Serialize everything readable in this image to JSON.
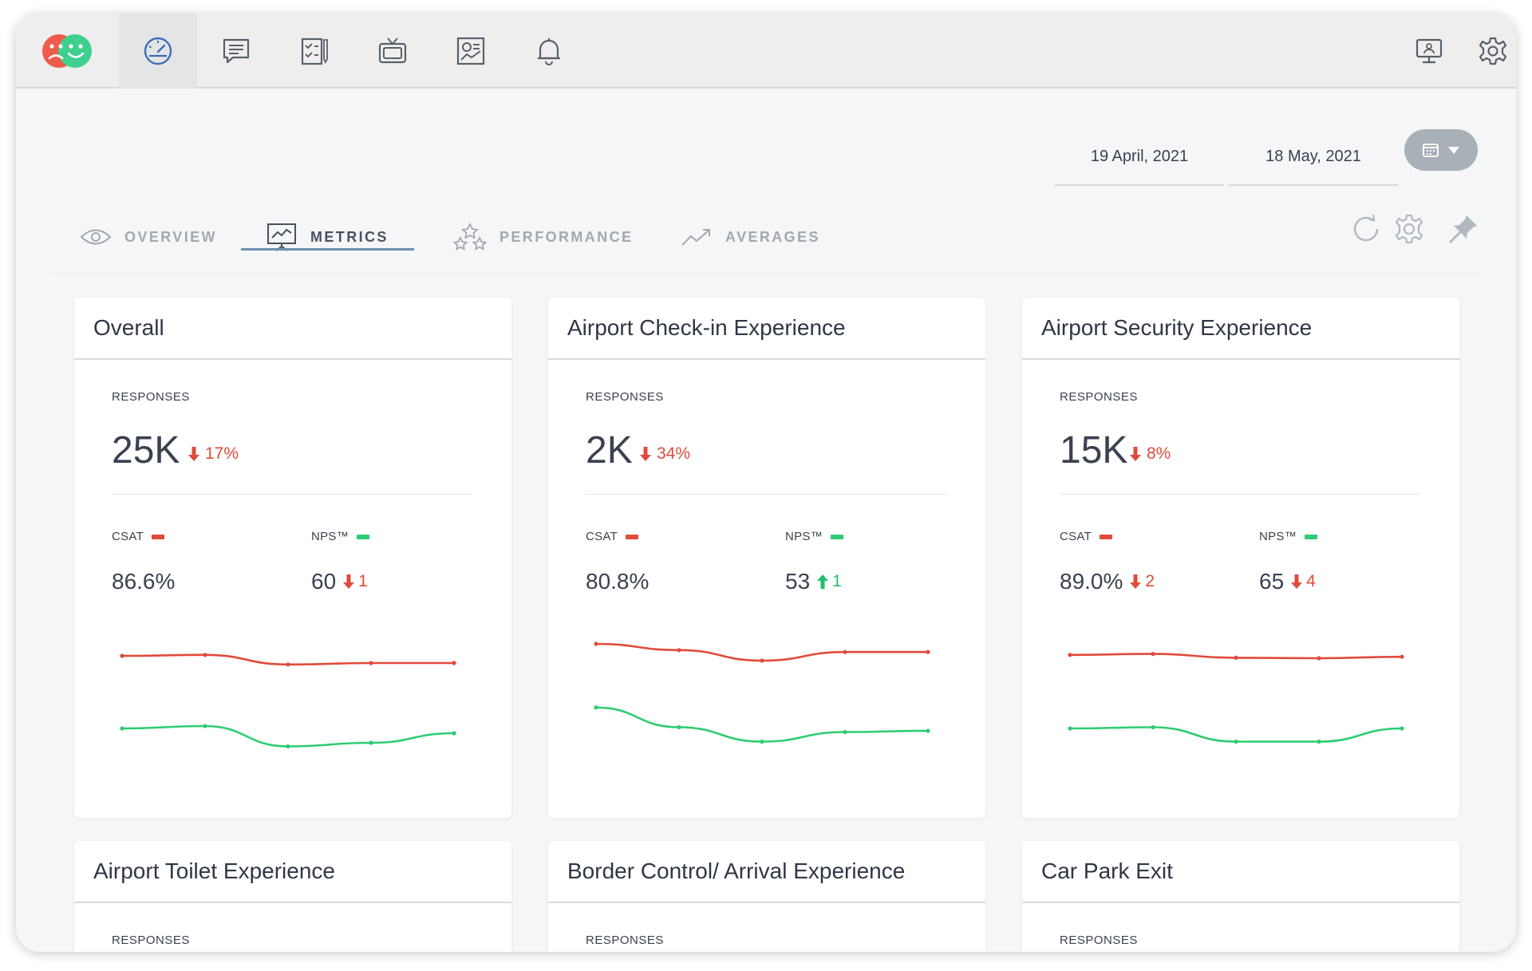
{
  "topbar": {
    "logo_icon": "sad-happy-faces-logo",
    "nav_icons": [
      "dashboard-gauge-icon",
      "chat-list-icon",
      "survey-checklist-icon",
      "tv-display-icon",
      "report-chart-icon",
      "bell-icon"
    ],
    "right_icons": [
      "kiosk-monitor-icon",
      "settings-gear-icon"
    ]
  },
  "date_range": {
    "start": "19 April, 2021",
    "end": "18 May, 2021"
  },
  "tabs": [
    {
      "label": "OVERVIEW",
      "icon": "eye-icon"
    },
    {
      "label": "METRICS",
      "icon": "presentation-chart-icon",
      "active": true
    },
    {
      "label": "PERFORMANCE",
      "icon": "stars-icon"
    },
    {
      "label": "AVERAGES",
      "icon": "trend-up-icon"
    }
  ],
  "colors": {
    "csat": "#e04b3a",
    "nps": "#2ecc71",
    "down": "#e04b3a",
    "up": "#1fbf6c"
  },
  "cards": [
    {
      "title": "Overall",
      "responses_label": "RESPONSES",
      "responses": "25K",
      "responses_change": "17%",
      "csat_label": "CSAT",
      "csat_value": "86.6%",
      "csat_change": "",
      "csat_dir": "",
      "nps_label": "NPS™",
      "nps_value": "60",
      "nps_change": "1",
      "nps_dir": "down",
      "csat_trend": [
        0.6,
        0.62,
        0.42,
        0.45,
        0.45
      ],
      "nps_trend": [
        0.6,
        0.64,
        0.3,
        0.36,
        0.52
      ]
    },
    {
      "title": "Airport Check-in Experience",
      "responses_label": "RESPONSES",
      "responses": "2K",
      "responses_change": "34%",
      "csat_label": "CSAT",
      "csat_value": "80.8%",
      "csat_change": "",
      "csat_dir": "",
      "nps_label": "NPS™",
      "nps_value": "53",
      "nps_change": "1",
      "nps_dir": "up",
      "csat_trend": [
        0.85,
        0.72,
        0.5,
        0.68,
        0.68
      ],
      "nps_trend": [
        0.95,
        0.62,
        0.38,
        0.54,
        0.56
      ]
    },
    {
      "title": "Airport Security Experience",
      "responses_label": "RESPONSES",
      "responses": "15K",
      "responses_change": "8%",
      "csat_label": "CSAT",
      "csat_value": "89.0%",
      "csat_change": "2",
      "csat_dir": "down",
      "nps_label": "NPS™",
      "nps_value": "65",
      "nps_change": "4",
      "nps_dir": "down",
      "csat_trend": [
        0.62,
        0.64,
        0.56,
        0.55,
        0.58
      ],
      "nps_trend": [
        0.6,
        0.62,
        0.38,
        0.38,
        0.6
      ]
    },
    {
      "title": "Airport Toilet Experience",
      "responses_label": "RESPONSES"
    },
    {
      "title": "Border Control/ Arrival Experience",
      "responses_label": "RESPONSES"
    },
    {
      "title": "Car Park Exit",
      "responses_label": "RESPONSES"
    }
  ]
}
